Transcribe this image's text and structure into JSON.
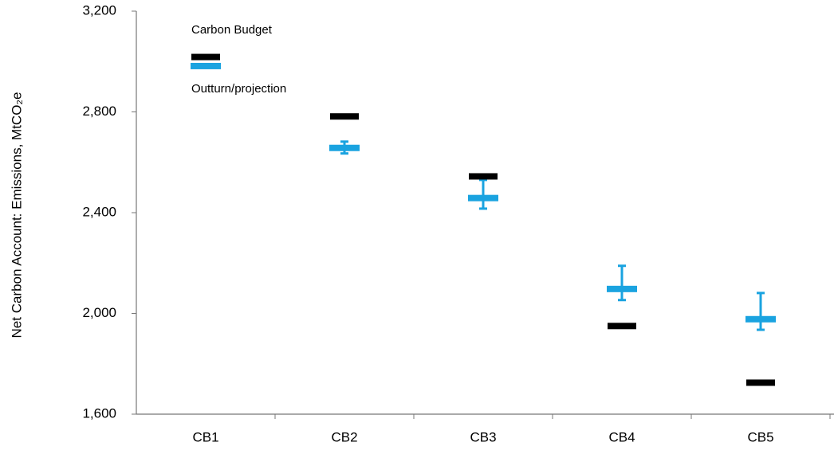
{
  "chart_data": {
    "type": "budget-vs-outturn",
    "y_label": "Net Carbon Account: Emissions, MtCO₂e",
    "categories": [
      "CB1",
      "CB2",
      "CB3",
      "CB4",
      "CB5"
    ],
    "series": [
      {
        "name": "Carbon Budget",
        "color": "#000000",
        "values": [
          3018,
          2782,
          2544,
          1950,
          1725
        ]
      },
      {
        "name": "Outturn/projection",
        "color": "#1aa3e0",
        "values": [
          2982,
          2657,
          2458,
          2097,
          1977
        ],
        "error_upper": [
          null,
          2682,
          2530,
          2189,
          2081
        ],
        "error_lower": [
          null,
          2635,
          2416,
          2053,
          1935
        ]
      }
    ],
    "ylim": [
      1600,
      3200
    ],
    "yticks": [
      {
        "value": 1600,
        "label": "1,600"
      },
      {
        "value": 2000,
        "label": "2,000"
      },
      {
        "value": 2400,
        "label": "2,400"
      },
      {
        "value": 2800,
        "label": "2,800"
      },
      {
        "value": 3200,
        "label": "3,200"
      }
    ]
  }
}
